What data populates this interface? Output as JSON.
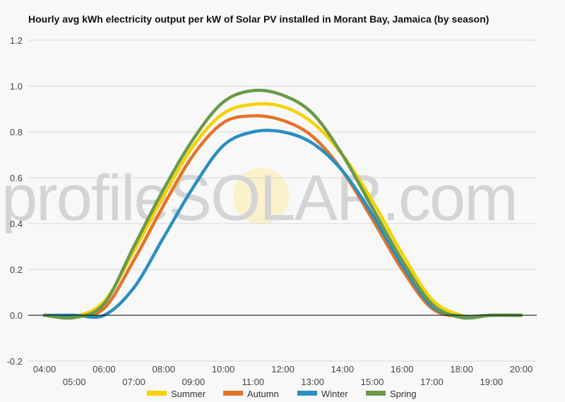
{
  "chart_data": {
    "type": "line",
    "title": "Hourly avg kWh electricity output per kW of Solar PV installed in Morant Bay, Jamaica (by season)",
    "xlabel": "",
    "ylabel": "",
    "ylim": [
      -0.2,
      1.2
    ],
    "yticks": [
      "-0.2",
      "0.0",
      "0.2",
      "0.4",
      "0.6",
      "0.8",
      "1.0",
      "1.2"
    ],
    "x": [
      "04:00",
      "05:00",
      "06:00",
      "07:00",
      "08:00",
      "09:00",
      "10:00",
      "11:00",
      "12:00",
      "13:00",
      "14:00",
      "15:00",
      "16:00",
      "17:00",
      "18:00",
      "19:00",
      "20:00"
    ],
    "grid": true,
    "legend": "bottom",
    "watermark": "profileSOLAR.com",
    "series": [
      {
        "name": "Summer",
        "color": "#f5d200",
        "values": [
          0,
          -0.005,
          0.06,
          0.28,
          0.52,
          0.74,
          0.88,
          0.92,
          0.91,
          0.84,
          0.7,
          0.5,
          0.27,
          0.07,
          0,
          0,
          0
        ]
      },
      {
        "name": "Autumn",
        "color": "#e4732a",
        "values": [
          0,
          -0.005,
          0.03,
          0.24,
          0.48,
          0.7,
          0.84,
          0.87,
          0.85,
          0.78,
          0.63,
          0.42,
          0.2,
          0.03,
          -0.005,
          0,
          0
        ]
      },
      {
        "name": "Winter",
        "color": "#2b8fbf",
        "values": [
          0,
          0,
          0,
          0.12,
          0.34,
          0.56,
          0.74,
          0.8,
          0.8,
          0.75,
          0.63,
          0.44,
          0.22,
          0.04,
          -0.005,
          0,
          0
        ]
      },
      {
        "name": "Spring",
        "color": "#6a9a4a",
        "values": [
          0,
          -0.01,
          0.05,
          0.3,
          0.55,
          0.77,
          0.93,
          0.98,
          0.96,
          0.88,
          0.7,
          0.47,
          0.24,
          0.05,
          -0.01,
          0,
          0
        ]
      }
    ]
  }
}
